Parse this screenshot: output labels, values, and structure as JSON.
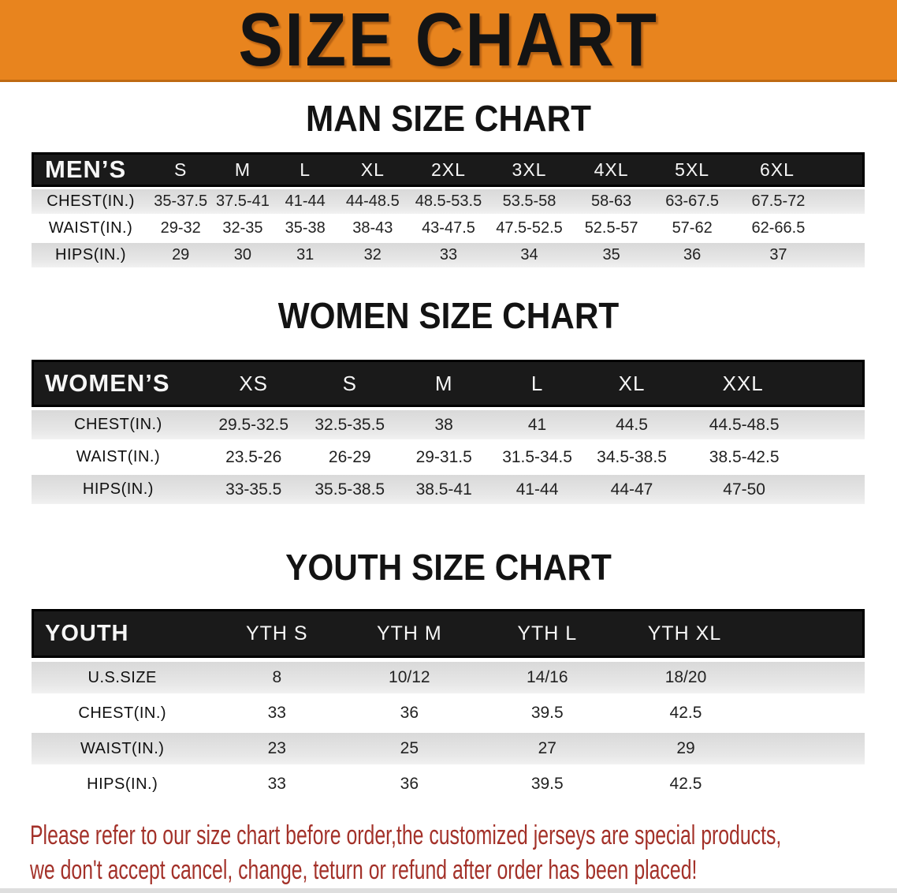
{
  "banner": {
    "title": "SIZE CHART",
    "bg_color": "#E8841E"
  },
  "sections": [
    {
      "heading": "MAN SIZE CHART",
      "table": {
        "name": "men-size-table",
        "corner_label": "MEN’S",
        "columns": [
          "S",
          "M",
          "L",
          "XL",
          "2XL",
          "3XL",
          "4XL",
          "5XL",
          "6XL"
        ],
        "rows": [
          {
            "label": "CHEST(IN.)",
            "values": [
              "35-37.5",
              "37.5-41",
              "41-44",
              "44-48.5",
              "48.5-53.5",
              "53.5-58",
              "58-63",
              "63-67.5",
              "67.5-72"
            ]
          },
          {
            "label": "WAIST(IN.)",
            "values": [
              "29-32",
              "32-35",
              "35-38",
              "38-43",
              "43-47.5",
              "47.5-52.5",
              "52.5-57",
              "57-62",
              "62-66.5"
            ]
          },
          {
            "label": "HIPS(IN.)",
            "values": [
              "29",
              "30",
              "31",
              "32",
              "33",
              "34",
              "35",
              "36",
              "37"
            ]
          }
        ]
      }
    },
    {
      "heading": "WOMEN SIZE CHART",
      "table": {
        "name": "women-size-table",
        "corner_label": "WOMEN’S",
        "columns": [
          "XS",
          "S",
          "M",
          "L",
          "XL",
          "XXL"
        ],
        "rows": [
          {
            "label": "CHEST(IN.)",
            "values": [
              "29.5-32.5",
              "32.5-35.5",
              "38",
              "41",
              "44.5",
              "44.5-48.5"
            ]
          },
          {
            "label": "WAIST(IN.)",
            "values": [
              "23.5-26",
              "26-29",
              "29-31.5",
              "31.5-34.5",
              "34.5-38.5",
              "38.5-42.5"
            ]
          },
          {
            "label": "HIPS(IN.)",
            "values": [
              "33-35.5",
              "35.5-38.5",
              "38.5-41",
              "41-44",
              "44-47",
              "47-50"
            ]
          }
        ]
      }
    },
    {
      "heading": "YOUTH SIZE CHART",
      "table": {
        "name": "youth-size-table",
        "corner_label": "YOUTH",
        "columns": [
          "YTH S",
          "YTH M",
          "YTH L",
          "YTH XL"
        ],
        "rows": [
          {
            "label": "U.S.SIZE",
            "values": [
              "8",
              "10/12",
              "14/16",
              "18/20"
            ]
          },
          {
            "label": "CHEST(IN.)",
            "values": [
              "33",
              "36",
              "39.5",
              "42.5"
            ]
          },
          {
            "label": "WAIST(IN.)",
            "values": [
              "23",
              "25",
              "27",
              "29"
            ]
          },
          {
            "label": "HIPS(IN.)",
            "values": [
              "33",
              "36",
              "39.5",
              "42.5"
            ]
          }
        ]
      }
    }
  ],
  "disclaimer": {
    "line1": "Please refer to our size chart before order,the customized jerseys are special products,",
    "line2": "we don't accept cancel, change, teturn or refund after order has been placed!",
    "color": "#A33129"
  },
  "colors": {
    "banner_orange": "#E8841E",
    "table_header_black": "#1A1A1A",
    "striped_row_gray": "#E2E2E2",
    "disclaimer_red": "#A33129"
  }
}
